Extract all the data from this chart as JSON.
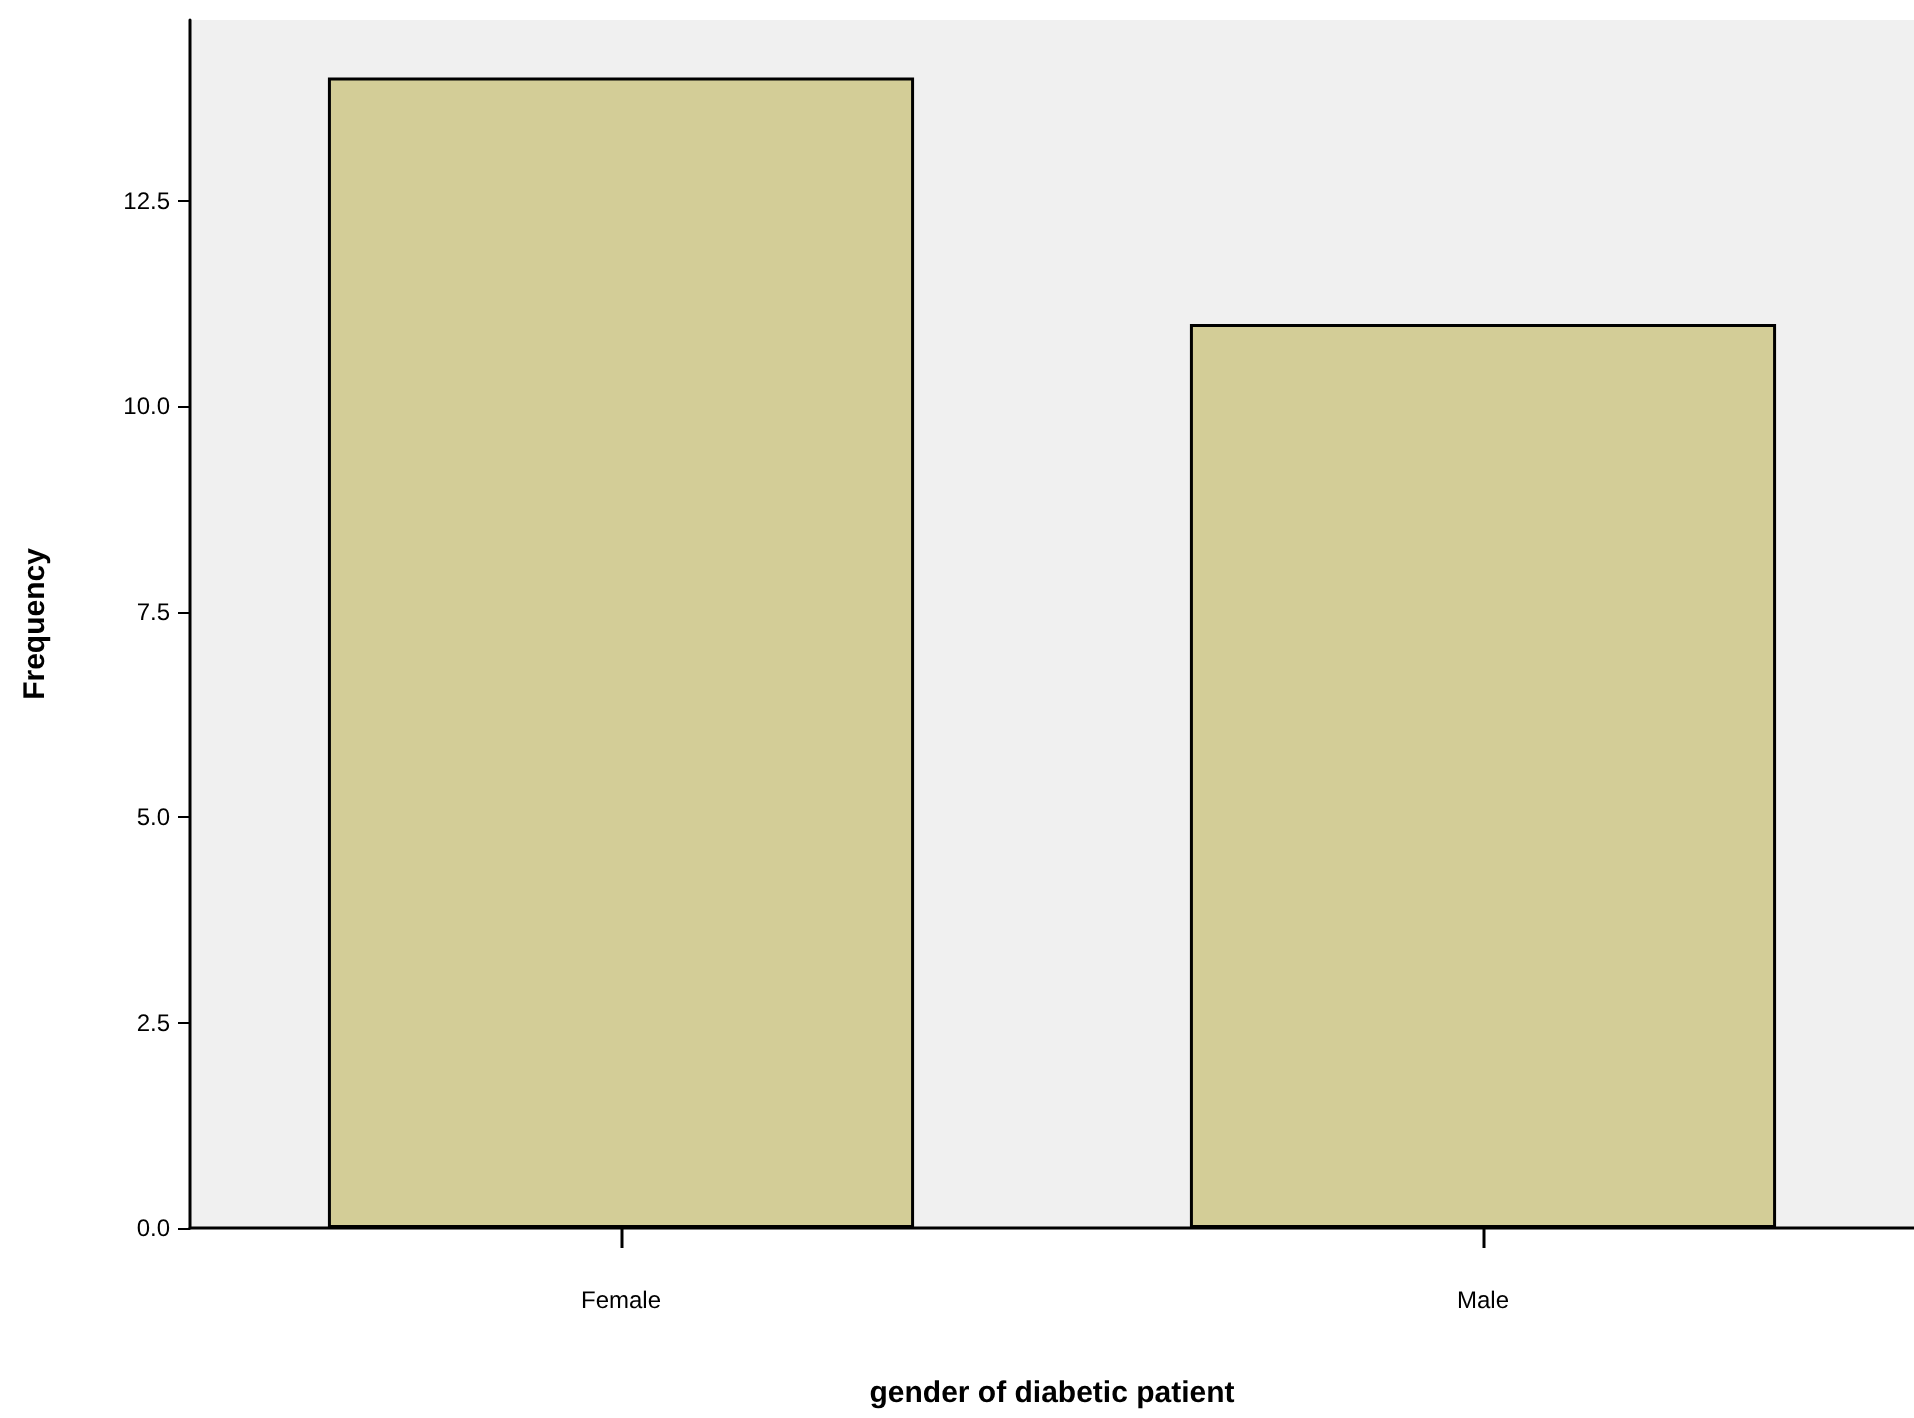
{
  "chart_data": {
    "type": "bar",
    "xlabel": "gender of diabetic patient",
    "ylabel": "Frequency",
    "categories": [
      "Female",
      "Male"
    ],
    "values": [
      14,
      11
    ],
    "color": "#d3cd97",
    "ylim": [
      0,
      14.7
    ],
    "yticks": [
      {
        "value": 0,
        "label": "0.0"
      },
      {
        "value": 2.5,
        "label": "2.5"
      },
      {
        "value": 5,
        "label": "5.0"
      },
      {
        "value": 7.5,
        "label": "7.5"
      },
      {
        "value": 10,
        "label": "10.0"
      },
      {
        "value": 12.5,
        "label": "12.5"
      }
    ],
    "grid": false
  }
}
